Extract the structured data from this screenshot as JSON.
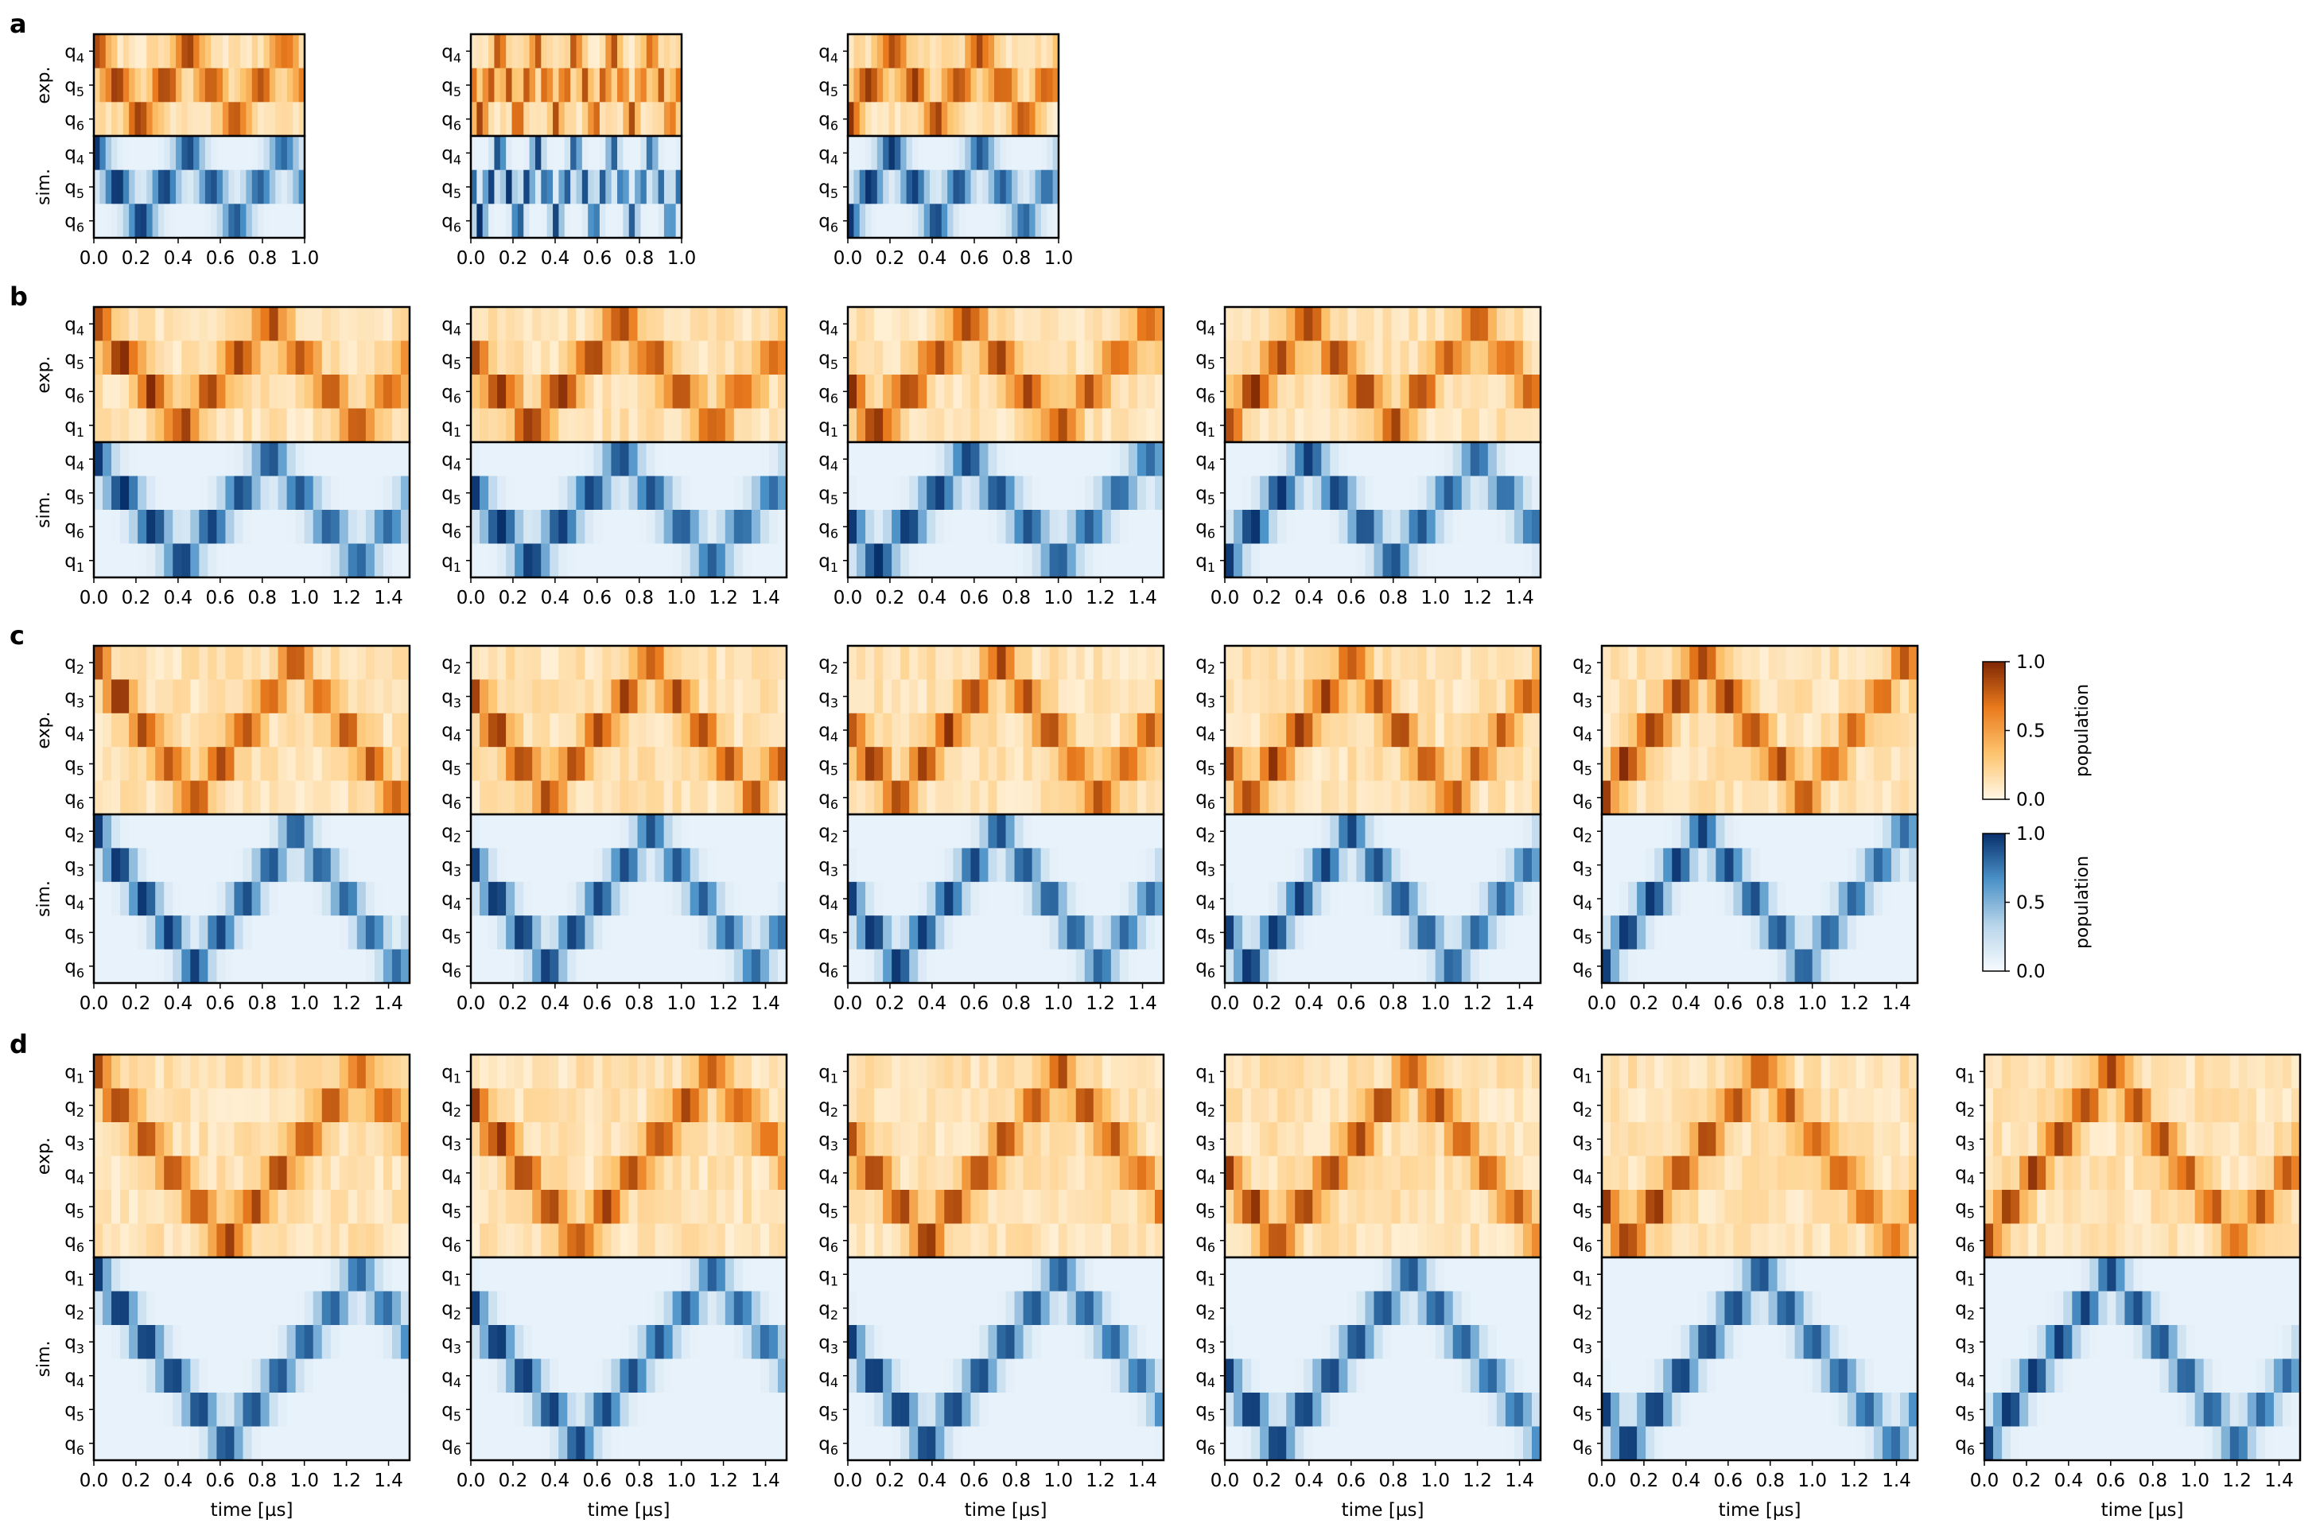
{
  "chart_data": {
    "type": "heatmap",
    "colorbars": [
      {
        "name": "exp",
        "label": "population",
        "ticks": [
          "1.0",
          "0.5",
          "0.0"
        ],
        "colors": [
          "#fff7e6",
          "#fdc46e",
          "#e97a1d",
          "#7f2704"
        ]
      },
      {
        "name": "sim",
        "label": "population",
        "ticks": [
          "1.0",
          "0.5",
          "0.0"
        ],
        "colors": [
          "#f7fbff",
          "#b8d5ea",
          "#4a91c7",
          "#08306b"
        ]
      }
    ],
    "group_labels": {
      "exp": "exp.",
      "sim": "sim."
    },
    "xlabel": "time [µs]",
    "ticks_short": [
      "0.0",
      "0.2",
      "0.4",
      "0.6",
      "0.8",
      "1.0"
    ],
    "ticks_long": [
      "0.0",
      "0.2",
      "0.4",
      "0.6",
      "0.8",
      "1.0",
      "1.2",
      "1.4"
    ],
    "qubit_prefix": "q",
    "rows": [
      {
        "label": "a",
        "qubits": [
          "4",
          "5",
          "6"
        ],
        "tmax": 1.0,
        "panels": [
          {
            "start": "4",
            "period": 0.45
          },
          {
            "start": "5",
            "period": 0.18
          },
          {
            "start": "6",
            "period": 0.42
          }
        ]
      },
      {
        "label": "b",
        "qubits": [
          "4",
          "5",
          "6",
          "1"
        ],
        "tmax": 1.5,
        "panels": [
          {
            "start": "4",
            "period": 0.84
          },
          {
            "start": "5",
            "period": 0.86
          },
          {
            "start": "6",
            "period": 0.86
          },
          {
            "start": "1",
            "period": 0.8
          }
        ]
      },
      {
        "label": "c",
        "qubits": [
          "2",
          "3",
          "4",
          "5",
          "6"
        ],
        "tmax": 1.5,
        "panels": [
          {
            "start": "2",
            "period": 0.96
          },
          {
            "start": "3",
            "period": 0.98
          },
          {
            "start": "4",
            "period": 0.96
          },
          {
            "start": "5",
            "period": 0.96
          },
          {
            "start": "6",
            "period": 0.96
          }
        ]
      },
      {
        "label": "d",
        "qubits": [
          "1",
          "2",
          "3",
          "4",
          "5",
          "6"
        ],
        "tmax": 1.5,
        "panels": [
          {
            "start": "1",
            "period": 1.26
          },
          {
            "start": "2",
            "period": 1.28
          },
          {
            "start": "3",
            "period": 1.26
          },
          {
            "start": "4",
            "period": 1.26
          },
          {
            "start": "5",
            "period": 1.26
          },
          {
            "start": "6",
            "period": 1.2
          }
        ]
      }
    ]
  }
}
